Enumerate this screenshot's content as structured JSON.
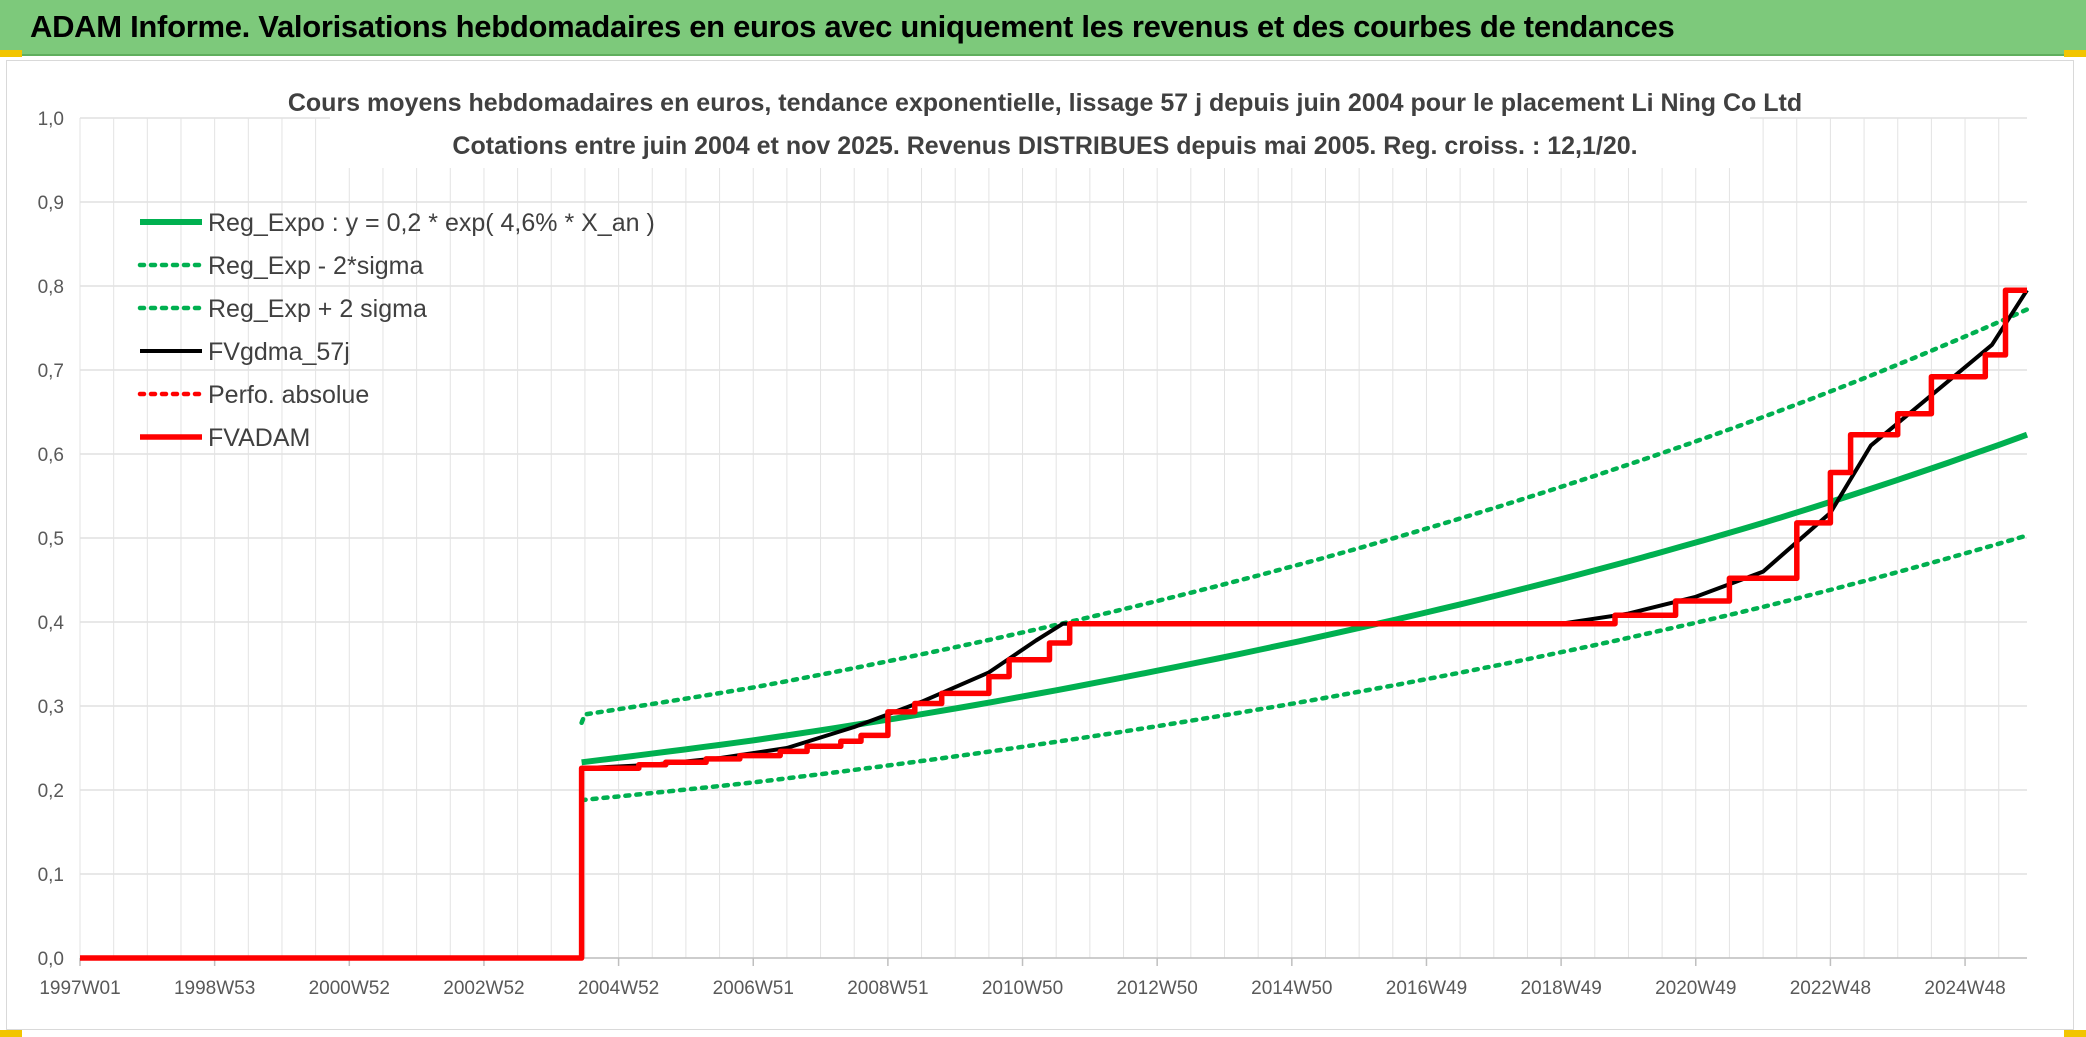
{
  "header": {
    "title": "ADAM Informe. Valorisations hebdomadaires en euros avec uniquement les revenus et des courbes de tendances"
  },
  "colors": {
    "banner": "#7dc97b",
    "green": "#00b050",
    "black": "#000000",
    "red": "#ff0000",
    "grid": "#d9d9d9"
  },
  "chart_data": {
    "type": "line",
    "title": "Cours moyens hebdomadaires en euros, tendance exponentielle, lissage 57 j depuis juin 2004 pour le placement Li Ning Co Ltd",
    "subtitle": "Cotations entre juin 2004 et nov 2025. Revenus DISTRIBUES depuis mai 2005. Reg. croiss. : 12,1/20.",
    "xlabel": "",
    "ylabel": "",
    "xlim": [
      1997.0,
      2025.92
    ],
    "ylim": [
      0,
      1.0
    ],
    "y_ticks": [
      "0,0",
      "0,1",
      "0,2",
      "0,3",
      "0,4",
      "0,5",
      "0,6",
      "0,7",
      "0,8",
      "0,9",
      "1,0"
    ],
    "x_tick_labels": [
      "1997W01",
      "1998W53",
      "2000W52",
      "2002W52",
      "2004W52",
      "2006W51",
      "2008W51",
      "2010W50",
      "2012W50",
      "2014W50",
      "2016W49",
      "2018W49",
      "2020W49",
      "2022W48",
      "2024W48"
    ],
    "x_tick_positions": [
      1997.0,
      1999.0,
      2001.0,
      2003.0,
      2005.0,
      2007.0,
      2009.0,
      2011.0,
      2013.0,
      2015.0,
      2017.0,
      2019.0,
      2021.0,
      2023.0,
      2025.0
    ],
    "legend_placement": "top-left",
    "grid": true,
    "series": [
      {
        "name": "Reg_Expo : y = 0,2 * exp( 4,6% *  X_an )",
        "style": "solid-thick",
        "color": "#00b050",
        "x": [
          2004.45,
          2007,
          2010,
          2013,
          2016,
          2019,
          2022,
          2025.92
        ],
        "y": [
          0.233,
          0.259,
          0.297,
          0.342,
          0.393,
          0.451,
          0.518,
          0.623
        ]
      },
      {
        "name": "Reg_Exp - 2*sigma",
        "style": "dotted",
        "color": "#00b050",
        "x": [
          2004.45,
          2007,
          2010,
          2013,
          2016,
          2019,
          2022,
          2025.92
        ],
        "y": [
          0.188,
          0.209,
          0.24,
          0.276,
          0.317,
          0.364,
          0.418,
          0.503
        ]
      },
      {
        "name": "Reg_Exp + 2 sigma",
        "style": "dotted",
        "color": "#00b050",
        "x": [
          2004.45,
          2004.5,
          2007,
          2010,
          2013,
          2016,
          2019,
          2022,
          2025.92
        ],
        "y": [
          0.28,
          0.29,
          0.322,
          0.37,
          0.425,
          0.488,
          0.561,
          0.644,
          0.772
        ]
      },
      {
        "name": "FVgdma_57j",
        "style": "solid",
        "color": "#000000",
        "x": [
          2004.45,
          2005.5,
          2006.5,
          2007.5,
          2008.5,
          2009.5,
          2010.5,
          2011.2,
          2011.6,
          2019.0,
          2020.0,
          2021.0,
          2022.0,
          2023.0,
          2023.6,
          2024.5,
          2025.4,
          2025.92
        ],
        "y": [
          0.226,
          0.23,
          0.238,
          0.25,
          0.275,
          0.305,
          0.34,
          0.378,
          0.398,
          0.398,
          0.41,
          0.43,
          0.46,
          0.53,
          0.61,
          0.67,
          0.73,
          0.795
        ]
      },
      {
        "name": "Perfo. absolue",
        "style": "dotted",
        "color": "#ff0000",
        "x": [],
        "y": []
      },
      {
        "name": "FVADAM",
        "style": "step-thick",
        "color": "#ff0000",
        "x": [
          1997.0,
          2004.45,
          2004.45,
          2005.3,
          2005.7,
          2006.3,
          2006.8,
          2007.4,
          2007.8,
          2008.3,
          2008.6,
          2009.0,
          2009.4,
          2009.8,
          2010.5,
          2010.8,
          2011.4,
          2011.7,
          2019.0,
          2019.8,
          2020.7,
          2021.5,
          2022.5,
          2023.0,
          2023.3,
          2024.0,
          2024.5,
          2025.3,
          2025.6,
          2025.92
        ],
        "y": [
          0.0,
          0.0,
          0.226,
          0.23,
          0.233,
          0.237,
          0.241,
          0.246,
          0.252,
          0.258,
          0.265,
          0.293,
          0.303,
          0.315,
          0.335,
          0.355,
          0.375,
          0.398,
          0.398,
          0.408,
          0.425,
          0.452,
          0.518,
          0.578,
          0.623,
          0.648,
          0.692,
          0.718,
          0.795,
          0.795
        ]
      }
    ]
  }
}
